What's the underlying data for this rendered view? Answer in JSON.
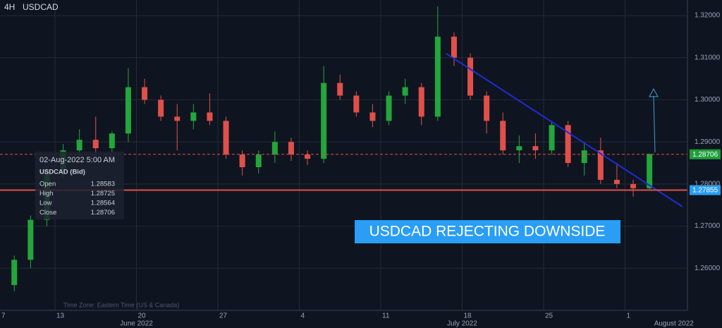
{
  "chart_data": {
    "type": "candlestick",
    "timeframe": "4H",
    "title": "USDCAD",
    "x": [
      "2022-06-08",
      "2022-06-09",
      "2022-06-10",
      "2022-06-13",
      "2022-06-14",
      "2022-06-15",
      "2022-06-16",
      "2022-06-17",
      "2022-06-20",
      "2022-06-21",
      "2022-06-22",
      "2022-06-23",
      "2022-06-24",
      "2022-06-27",
      "2022-06-28",
      "2022-06-29",
      "2022-06-30",
      "2022-07-01",
      "2022-07-04",
      "2022-07-05",
      "2022-07-06",
      "2022-07-07",
      "2022-07-08",
      "2022-07-11",
      "2022-07-12",
      "2022-07-13",
      "2022-07-14",
      "2022-07-15",
      "2022-07-18",
      "2022-07-19",
      "2022-07-20",
      "2022-07-21",
      "2022-07-22",
      "2022-07-25",
      "2022-07-26",
      "2022-07-27",
      "2022-07-28",
      "2022-07-29",
      "2022-08-01",
      "2022-08-02"
    ],
    "open": [
      1.256,
      1.262,
      1.2715,
      1.283,
      1.288,
      1.2905,
      1.2885,
      1.292,
      1.303,
      1.3,
      1.296,
      1.295,
      1.297,
      1.295,
      1.287,
      1.284,
      1.287,
      1.29,
      1.287,
      1.286,
      1.304,
      1.301,
      1.297,
      1.295,
      1.301,
      1.303,
      1.296,
      1.315,
      1.31,
      1.301,
      1.295,
      1.288,
      1.289,
      1.288,
      1.294,
      1.285,
      1.288,
      1.281,
      1.28,
      1.279
    ],
    "high": [
      1.263,
      1.2725,
      1.284,
      1.2895,
      1.293,
      1.296,
      1.2925,
      1.3075,
      1.305,
      1.301,
      1.299,
      1.299,
      1.3015,
      1.296,
      1.288,
      1.288,
      1.2925,
      1.291,
      1.288,
      1.308,
      1.306,
      1.302,
      1.299,
      1.302,
      1.305,
      1.304,
      1.3222,
      1.316,
      1.311,
      1.302,
      1.297,
      1.2915,
      1.292,
      1.295,
      1.295,
      1.29,
      1.291,
      1.285,
      1.281,
      1.2873
    ],
    "low": [
      1.2545,
      1.26,
      1.27,
      1.2815,
      1.286,
      1.287,
      1.286,
      1.29,
      1.299,
      1.295,
      1.288,
      1.293,
      1.294,
      1.286,
      1.282,
      1.2825,
      1.285,
      1.2855,
      1.2845,
      1.285,
      1.3,
      1.296,
      1.2935,
      1.294,
      1.299,
      1.294,
      1.295,
      1.308,
      1.3,
      1.292,
      1.287,
      1.285,
      1.286,
      1.287,
      1.284,
      1.282,
      1.28,
      1.279,
      1.277,
      1.2785
    ],
    "close": [
      1.262,
      1.2715,
      1.283,
      1.288,
      1.2905,
      1.2885,
      1.292,
      1.303,
      1.3,
      1.296,
      1.295,
      1.297,
      1.295,
      1.287,
      1.284,
      1.287,
      1.29,
      1.287,
      1.286,
      1.304,
      1.301,
      1.297,
      1.295,
      1.301,
      1.303,
      1.296,
      1.315,
      1.31,
      1.301,
      1.295,
      1.288,
      1.289,
      1.288,
      1.294,
      1.285,
      1.288,
      1.281,
      1.28,
      1.279,
      1.2871
    ],
    "up_color": "#23a63a",
    "down_color": "#e0504a",
    "ylim": [
      1.25,
      1.3237
    ],
    "yticks": [
      {
        "value": 1.26,
        "label": "1.26000"
      },
      {
        "value": 1.27,
        "label": "1.27000"
      },
      {
        "value": 1.28,
        "label": "1.28000"
      },
      {
        "value": 1.29,
        "label": "1.29000"
      },
      {
        "value": 1.3,
        "label": "1.30000"
      },
      {
        "value": 1.31,
        "label": "1.31000"
      },
      {
        "value": 1.32,
        "label": "1.32000"
      }
    ],
    "xticks": [
      {
        "value": "2022-06-07",
        "label": "7"
      },
      {
        "value": "2022-06-13",
        "label": "13"
      },
      {
        "value": "2022-06-20",
        "label": "20"
      },
      {
        "value": "2022-06-27",
        "label": "27"
      },
      {
        "value": "2022-07-04",
        "label": "4"
      },
      {
        "value": "2022-07-11",
        "label": "11"
      },
      {
        "value": "2022-07-18",
        "label": "18"
      },
      {
        "value": "2022-07-25",
        "label": "25"
      },
      {
        "value": "2022-08-01",
        "label": "1"
      }
    ],
    "month_labels": [
      {
        "value": "2022-06-20",
        "label": "June 2022"
      },
      {
        "value": "2022-07-18",
        "label": "July 2022"
      },
      {
        "value": "2022-08-04",
        "label": "August 2022"
      }
    ],
    "grid": true,
    "levels": [
      {
        "value": 1.28706,
        "line_color": "#e0504a",
        "style": "dashed",
        "label_color": "#1e9e3a"
      },
      {
        "value": 1.27855,
        "line_color": "#e0504a",
        "style": "solid",
        "label_color": "#2a9df4"
      }
    ],
    "tooltip": {
      "date": "02-Aug-2022 5:00 AM",
      "symbol": "USDCAD (Bid)",
      "rows": [
        [
          "Open",
          1.28583
        ],
        [
          "High",
          1.28725
        ],
        [
          "Low",
          1.28564
        ],
        [
          "Close",
          1.28706
        ]
      ]
    },
    "annotation": "USDCAD REJECTING DOWNSIDE",
    "footnote": "Time Zone: Eastern Time (US & Canada)"
  }
}
